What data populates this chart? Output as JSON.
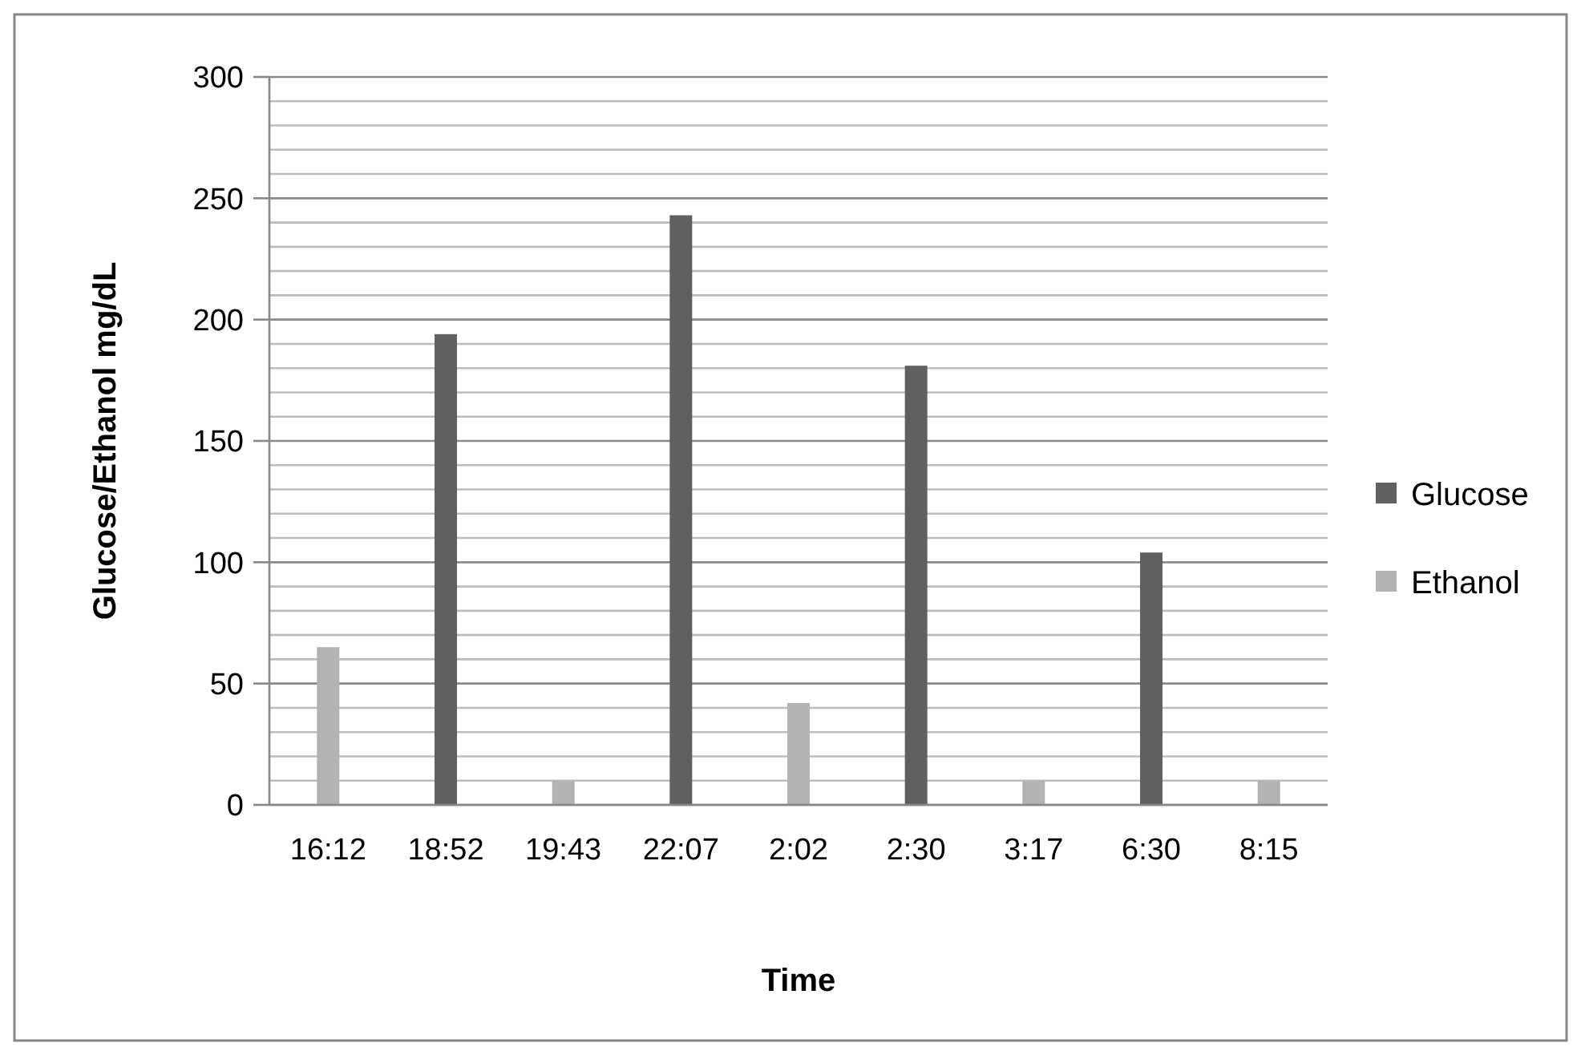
{
  "chart_data": {
    "type": "bar",
    "xlabel": "Time",
    "ylabel": "Glucose/Ethanol mg/dL",
    "categories": [
      "16:12",
      "18:52",
      "19:43",
      "22:07",
      "2:02",
      "2:30",
      "3:17",
      "6:30",
      "8:15"
    ],
    "series": [
      {
        "name": "Glucose",
        "color": "#606060",
        "values": [
          null,
          194,
          null,
          243,
          null,
          181,
          null,
          104,
          null
        ]
      },
      {
        "name": "Ethanol",
        "color": "#b3b3b3",
        "values": [
          65,
          null,
          10,
          null,
          42,
          null,
          10,
          null,
          10
        ]
      }
    ],
    "ylim": [
      0,
      300
    ],
    "yticks": [
      0,
      {
        "value": 10,
        "label": null
      },
      {
        "value": 20,
        "label": null
      },
      {
        "value": 30,
        "label": null
      },
      {
        "value": 40,
        "label": null
      },
      50,
      {
        "value": 60,
        "label": null
      },
      {
        "value": 70,
        "label": null
      },
      {
        "value": 80,
        "label": null
      },
      {
        "value": 90,
        "label": null
      },
      100,
      {
        "value": 110,
        "label": null
      },
      {
        "value": 120,
        "label": null
      },
      {
        "value": 130,
        "label": null
      },
      {
        "value": 140,
        "label": null
      },
      150,
      {
        "value": 160,
        "label": null
      },
      {
        "value": 170,
        "label": null
      },
      {
        "value": 180,
        "label": null
      },
      {
        "value": 190,
        "label": null
      },
      200,
      {
        "value": 210,
        "label": null
      },
      {
        "value": 220,
        "label": null
      },
      {
        "value": 230,
        "label": null
      },
      {
        "value": 240,
        "label": null
      },
      250,
      {
        "value": 260,
        "label": null
      },
      {
        "value": 270,
        "label": null
      },
      {
        "value": 280,
        "label": null
      },
      {
        "value": 290,
        "label": null
      },
      300
    ],
    "grid": "y",
    "legend": "right"
  }
}
